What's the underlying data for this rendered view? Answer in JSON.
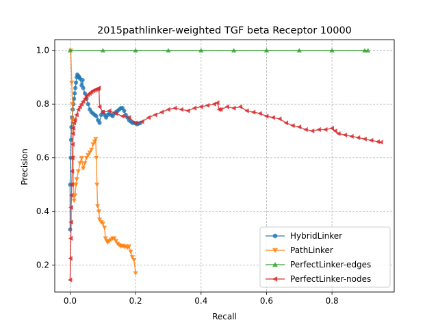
{
  "chart_data": {
    "type": "line",
    "title": "2015pathlinker-weighted TGF beta Receptor 10000",
    "xlabel": "Recall",
    "ylabel": "Precision",
    "xlim": [
      -0.047,
      0.99
    ],
    "ylim": [
      0.1,
      1.04
    ],
    "xticks": [
      0.0,
      0.2,
      0.4,
      0.6,
      0.8
    ],
    "xtick_labels": [
      "0.0",
      "0.2",
      "0.4",
      "0.6",
      "0.8"
    ],
    "yticks": [
      0.2,
      0.4,
      0.6,
      0.8,
      1.0
    ],
    "ytick_labels": [
      "0.2",
      "0.4",
      "0.6",
      "0.8",
      "1.0"
    ],
    "grid": true,
    "legend_position": "lower-right",
    "series": [
      {
        "name": "HybridLinker",
        "color": "#1f77b4",
        "marker": "circle",
        "points": [
          [
            0.0,
            0.333
          ],
          [
            0.0,
            0.5
          ],
          [
            0.002,
            0.6
          ],
          [
            0.003,
            0.667
          ],
          [
            0.004,
            0.714
          ],
          [
            0.006,
            0.75
          ],
          [
            0.008,
            0.78
          ],
          [
            0.01,
            0.8
          ],
          [
            0.012,
            0.82
          ],
          [
            0.014,
            0.84
          ],
          [
            0.016,
            0.86
          ],
          [
            0.018,
            0.88
          ],
          [
            0.02,
            0.9
          ],
          [
            0.022,
            0.91
          ],
          [
            0.025,
            0.905
          ],
          [
            0.028,
            0.9
          ],
          [
            0.03,
            0.895
          ],
          [
            0.035,
            0.87
          ],
          [
            0.038,
            0.89
          ],
          [
            0.04,
            0.86
          ],
          [
            0.045,
            0.84
          ],
          [
            0.05,
            0.82
          ],
          [
            0.055,
            0.8
          ],
          [
            0.06,
            0.78
          ],
          [
            0.065,
            0.77
          ],
          [
            0.07,
            0.765
          ],
          [
            0.075,
            0.76
          ],
          [
            0.08,
            0.755
          ],
          [
            0.085,
            0.74
          ],
          [
            0.09,
            0.73
          ],
          [
            0.095,
            0.76
          ],
          [
            0.1,
            0.77
          ],
          [
            0.105,
            0.76
          ],
          [
            0.11,
            0.75
          ],
          [
            0.115,
            0.76
          ],
          [
            0.12,
            0.765
          ],
          [
            0.125,
            0.76
          ],
          [
            0.13,
            0.755
          ],
          [
            0.135,
            0.765
          ],
          [
            0.14,
            0.77
          ],
          [
            0.145,
            0.775
          ],
          [
            0.15,
            0.78
          ],
          [
            0.155,
            0.785
          ],
          [
            0.16,
            0.785
          ],
          [
            0.165,
            0.775
          ],
          [
            0.17,
            0.76
          ],
          [
            0.175,
            0.75
          ],
          [
            0.18,
            0.74
          ],
          [
            0.185,
            0.735
          ],
          [
            0.19,
            0.73
          ],
          [
            0.195,
            0.73
          ],
          [
            0.2,
            0.728
          ],
          [
            0.205,
            0.725
          ],
          [
            0.21,
            0.728
          ],
          [
            0.215,
            0.73
          ]
        ]
      },
      {
        "name": "PathLinker",
        "color": "#ff7f0e",
        "marker": "triangle-down",
        "points": [
          [
            0.002,
            1.0
          ],
          [
            0.005,
            0.88
          ],
          [
            0.007,
            0.8
          ],
          [
            0.008,
            0.74
          ],
          [
            0.009,
            0.6
          ],
          [
            0.01,
            0.5
          ],
          [
            0.012,
            0.44
          ],
          [
            0.015,
            0.46
          ],
          [
            0.018,
            0.5
          ],
          [
            0.02,
            0.52
          ],
          [
            0.025,
            0.55
          ],
          [
            0.03,
            0.58
          ],
          [
            0.035,
            0.6
          ],
          [
            0.04,
            0.56
          ],
          [
            0.045,
            0.58
          ],
          [
            0.05,
            0.6
          ],
          [
            0.055,
            0.61
          ],
          [
            0.06,
            0.62
          ],
          [
            0.065,
            0.63
          ],
          [
            0.07,
            0.65
          ],
          [
            0.075,
            0.66
          ],
          [
            0.078,
            0.67
          ],
          [
            0.08,
            0.6
          ],
          [
            0.082,
            0.5
          ],
          [
            0.084,
            0.42
          ],
          [
            0.088,
            0.4
          ],
          [
            0.09,
            0.37
          ],
          [
            0.095,
            0.36
          ],
          [
            0.1,
            0.355
          ],
          [
            0.105,
            0.34
          ],
          [
            0.108,
            0.3
          ],
          [
            0.112,
            0.29
          ],
          [
            0.115,
            0.285
          ],
          [
            0.12,
            0.29
          ],
          [
            0.125,
            0.295
          ],
          [
            0.13,
            0.3
          ],
          [
            0.135,
            0.3
          ],
          [
            0.14,
            0.29
          ],
          [
            0.145,
            0.28
          ],
          [
            0.15,
            0.275
          ],
          [
            0.155,
            0.27
          ],
          [
            0.16,
            0.272
          ],
          [
            0.165,
            0.268
          ],
          [
            0.17,
            0.27
          ],
          [
            0.175,
            0.265
          ],
          [
            0.18,
            0.27
          ],
          [
            0.185,
            0.25
          ],
          [
            0.19,
            0.23
          ],
          [
            0.195,
            0.22
          ],
          [
            0.2,
            0.17
          ]
        ]
      },
      {
        "name": "PerfectLinker-edges",
        "color": "#2ca02c",
        "marker": "triangle-up",
        "points": [
          [
            0.0,
            1.0
          ],
          [
            0.1,
            1.0
          ],
          [
            0.2,
            1.0
          ],
          [
            0.3,
            1.0
          ],
          [
            0.4,
            1.0
          ],
          [
            0.5,
            1.0
          ],
          [
            0.6,
            1.0
          ],
          [
            0.7,
            1.0
          ],
          [
            0.8,
            1.0
          ],
          [
            0.9,
            1.0
          ],
          [
            0.91,
            1.0
          ]
        ]
      },
      {
        "name": "PerfectLinker-nodes",
        "color": "#d62728",
        "marker": "triangle-left",
        "points": [
          [
            0.0,
            0.145
          ],
          [
            0.001,
            0.225
          ],
          [
            0.002,
            0.3
          ],
          [
            0.003,
            0.36
          ],
          [
            0.003,
            0.415
          ],
          [
            0.004,
            0.46
          ],
          [
            0.005,
            0.5
          ],
          [
            0.006,
            0.55
          ],
          [
            0.007,
            0.6
          ],
          [
            0.008,
            0.65
          ],
          [
            0.009,
            0.69
          ],
          [
            0.01,
            0.71
          ],
          [
            0.012,
            0.73
          ],
          [
            0.015,
            0.74
          ],
          [
            0.02,
            0.76
          ],
          [
            0.025,
            0.78
          ],
          [
            0.03,
            0.79
          ],
          [
            0.035,
            0.8
          ],
          [
            0.04,
            0.81
          ],
          [
            0.045,
            0.82
          ],
          [
            0.05,
            0.83
          ],
          [
            0.055,
            0.835
          ],
          [
            0.06,
            0.84
          ],
          [
            0.065,
            0.845
          ],
          [
            0.07,
            0.85
          ],
          [
            0.075,
            0.852
          ],
          [
            0.08,
            0.855
          ],
          [
            0.085,
            0.857
          ],
          [
            0.088,
            0.86
          ],
          [
            0.09,
            0.79
          ],
          [
            0.1,
            0.77
          ],
          [
            0.12,
            0.775
          ],
          [
            0.14,
            0.765
          ],
          [
            0.16,
            0.755
          ],
          [
            0.18,
            0.75
          ],
          [
            0.2,
            0.73
          ],
          [
            0.22,
            0.735
          ],
          [
            0.24,
            0.75
          ],
          [
            0.26,
            0.76
          ],
          [
            0.28,
            0.77
          ],
          [
            0.3,
            0.78
          ],
          [
            0.32,
            0.785
          ],
          [
            0.34,
            0.78
          ],
          [
            0.36,
            0.775
          ],
          [
            0.38,
            0.785
          ],
          [
            0.4,
            0.79
          ],
          [
            0.42,
            0.795
          ],
          [
            0.44,
            0.8
          ],
          [
            0.45,
            0.805
          ],
          [
            0.455,
            0.78
          ],
          [
            0.46,
            0.78
          ],
          [
            0.48,
            0.79
          ],
          [
            0.5,
            0.785
          ],
          [
            0.52,
            0.79
          ],
          [
            0.54,
            0.775
          ],
          [
            0.56,
            0.77
          ],
          [
            0.58,
            0.765
          ],
          [
            0.6,
            0.755
          ],
          [
            0.62,
            0.75
          ],
          [
            0.64,
            0.745
          ],
          [
            0.66,
            0.73
          ],
          [
            0.68,
            0.72
          ],
          [
            0.7,
            0.715
          ],
          [
            0.72,
            0.705
          ],
          [
            0.74,
            0.7
          ],
          [
            0.76,
            0.705
          ],
          [
            0.78,
            0.705
          ],
          [
            0.8,
            0.71
          ],
          [
            0.81,
            0.7
          ],
          [
            0.82,
            0.69
          ],
          [
            0.84,
            0.685
          ],
          [
            0.86,
            0.68
          ],
          [
            0.88,
            0.675
          ],
          [
            0.9,
            0.67
          ],
          [
            0.92,
            0.665
          ],
          [
            0.94,
            0.66
          ],
          [
            0.95,
            0.658
          ]
        ]
      }
    ]
  }
}
